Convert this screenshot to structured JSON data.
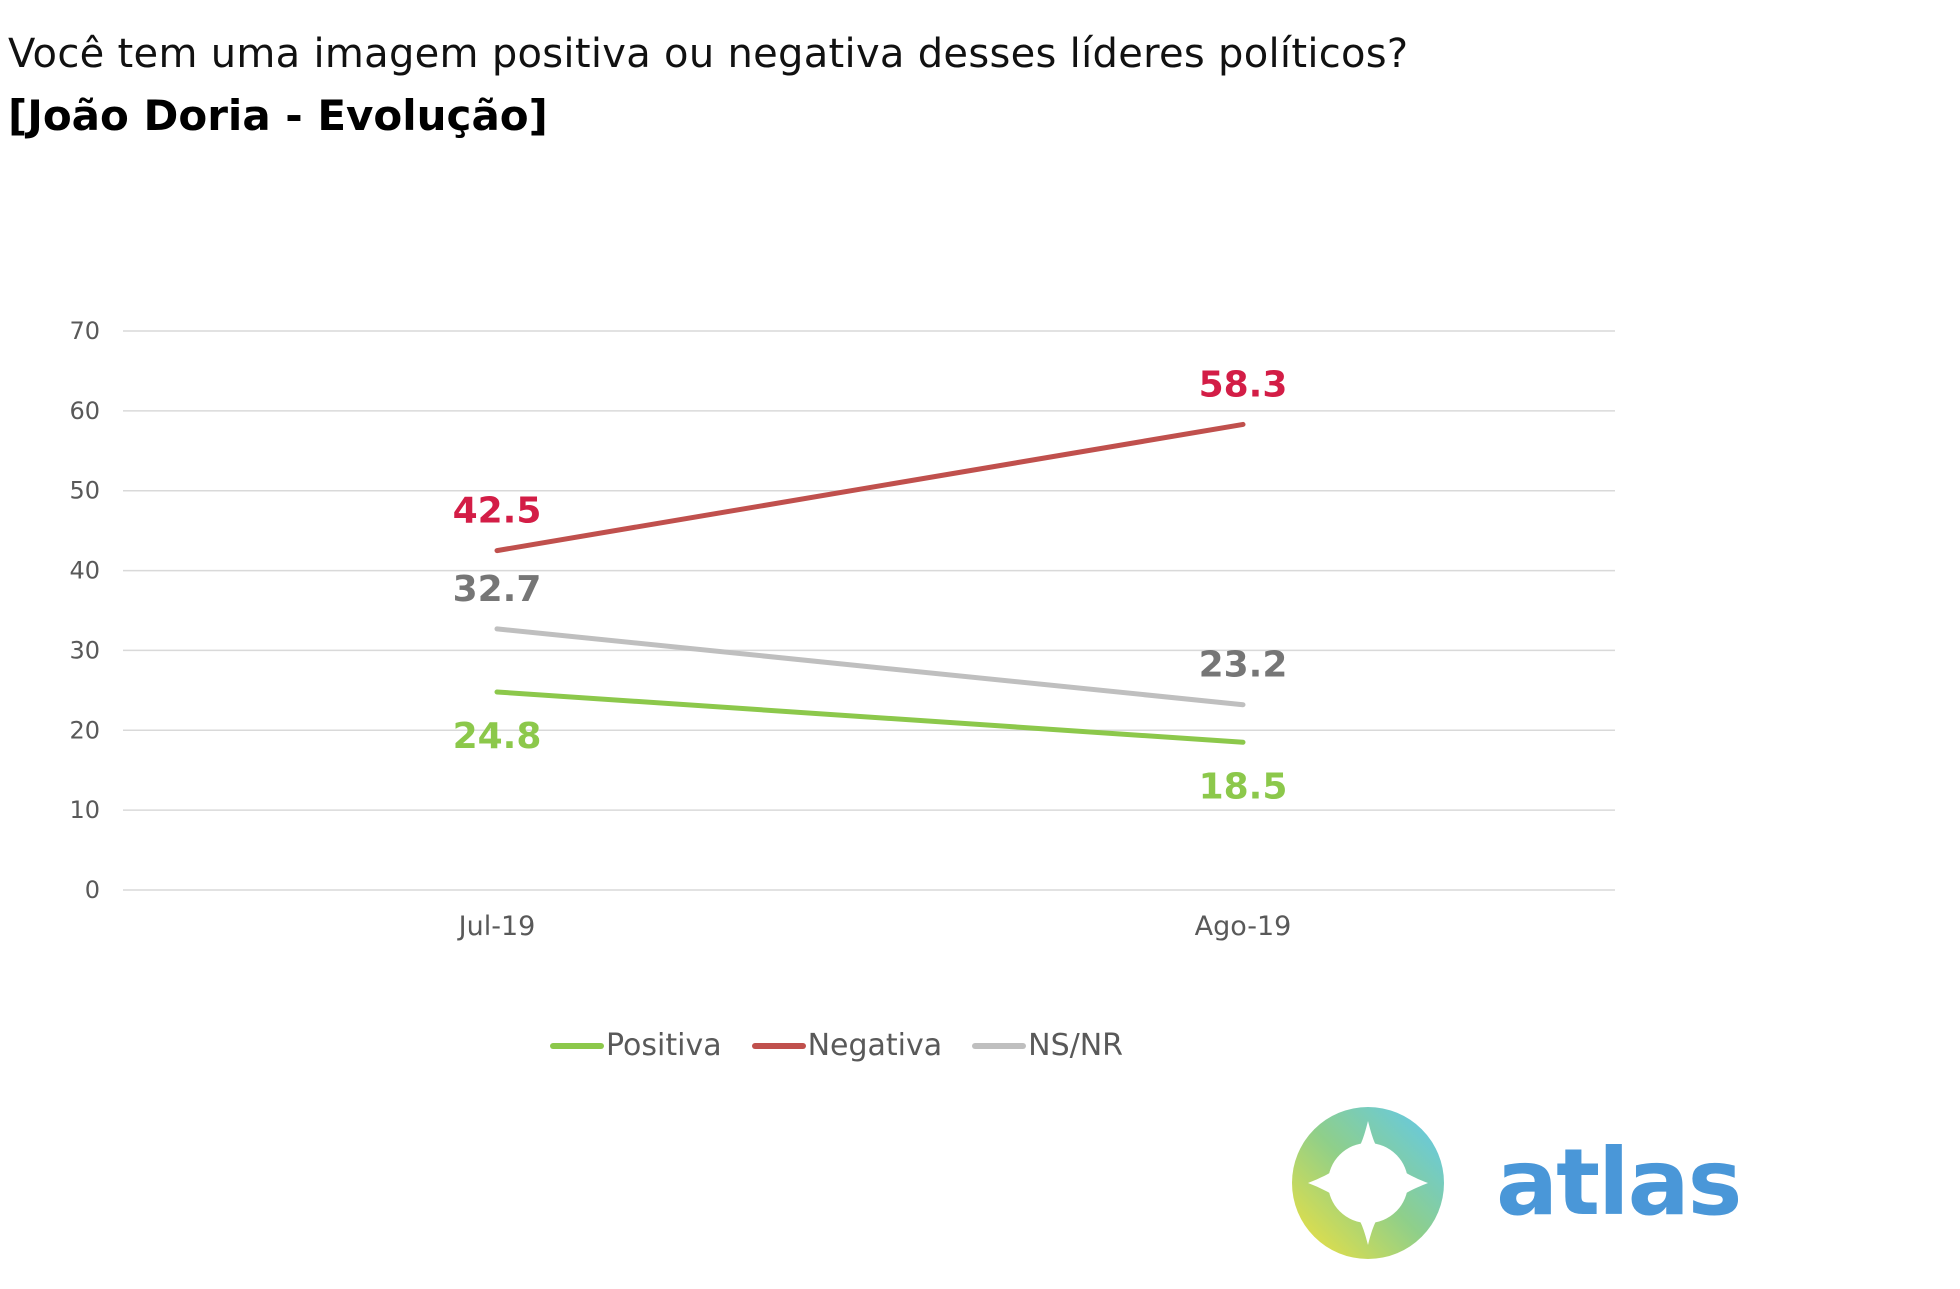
{
  "header": {
    "question": "Você tem uma imagem positiva ou negativa desses líderes políticos?",
    "subject": "[João Doria - Evolução]"
  },
  "chart_data": {
    "type": "line",
    "title": "Você tem uma imagem positiva ou negativa desses líderes políticos?",
    "subtitle": "[João Doria - Evolução]",
    "xlabel": "",
    "ylabel": "",
    "categories": [
      "Jul-19",
      "Ago-19"
    ],
    "ylim": [
      0,
      70
    ],
    "yticks": [
      0,
      10,
      20,
      30,
      40,
      50,
      60,
      70
    ],
    "grid": true,
    "legend_position": "bottom",
    "series": [
      {
        "name": "Positiva",
        "values": [
          24.8,
          18.5
        ],
        "labels": [
          "24.8",
          "18.5"
        ],
        "color": "#8cc84b",
        "label_color": "#8cc84b",
        "label_placement": "below"
      },
      {
        "name": "Negativa",
        "values": [
          42.5,
          58.3
        ],
        "labels": [
          "42.5",
          "58.3"
        ],
        "color": "#c0504d",
        "label_color": "#d31d46",
        "label_placement": "above"
      },
      {
        "name": "NS/NR",
        "values": [
          32.7,
          23.2
        ],
        "labels": [
          "32.7",
          "23.2"
        ],
        "color": "#bfbfbf",
        "label_color": "#767676",
        "label_placement": "above"
      }
    ]
  },
  "logo": {
    "text": "atlas",
    "icon": "compass-star-icon",
    "colors": {
      "text": "#4a97d8",
      "gradient_start": "#f5e23a",
      "gradient_mid": "#8fcf8a",
      "gradient_end": "#5ec8f2"
    }
  }
}
